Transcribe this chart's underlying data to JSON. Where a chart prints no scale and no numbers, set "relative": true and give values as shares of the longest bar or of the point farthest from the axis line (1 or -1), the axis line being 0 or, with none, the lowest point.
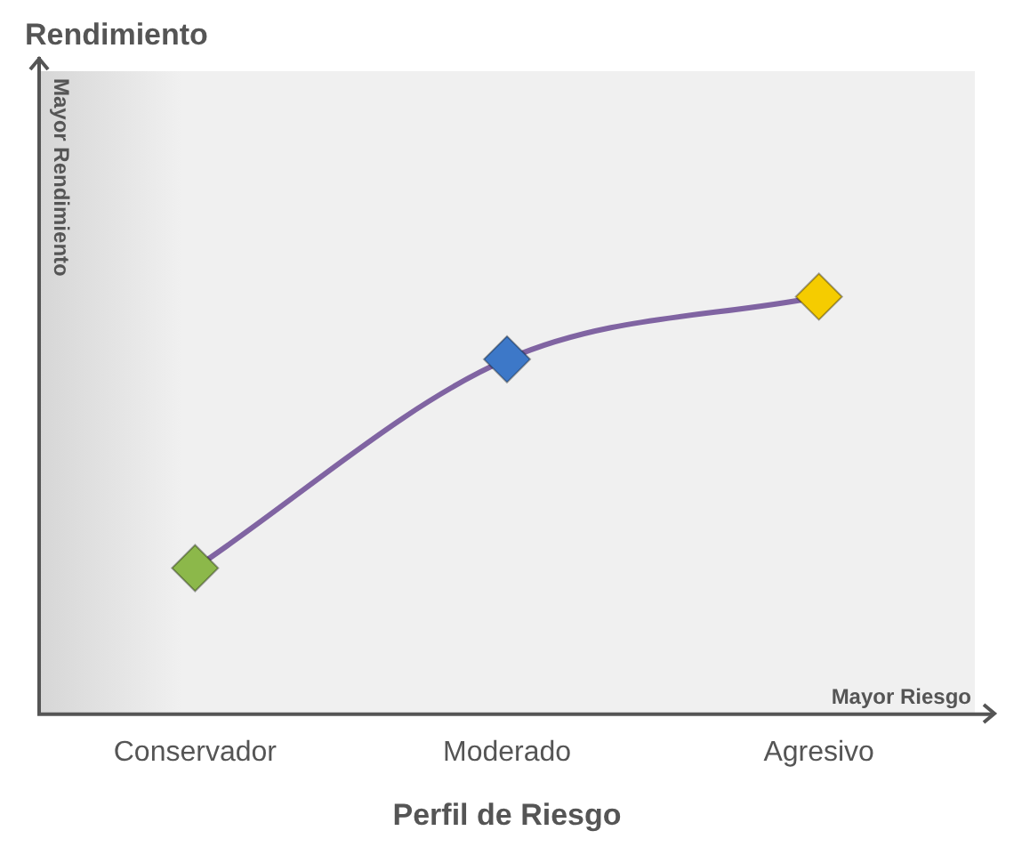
{
  "chart_data": {
    "type": "line",
    "relative": true,
    "title": "Rendimiento",
    "ylabel": "Mayor Rendimiento",
    "xlabel": "Perfil de Riesgo",
    "annotations": [
      "Mayor Riesgo"
    ],
    "categories": [
      "Conservador",
      "Moderado",
      "Agresivo"
    ],
    "series": [
      {
        "color": "#8064a2",
        "colors": [
          "#8cb84a",
          "#3d78c8",
          "#f5cc00"
        ],
        "values": [
          0.35,
          0.85,
          1
        ]
      }
    ],
    "marker": "diamond",
    "grid": false,
    "legend": false
  }
}
